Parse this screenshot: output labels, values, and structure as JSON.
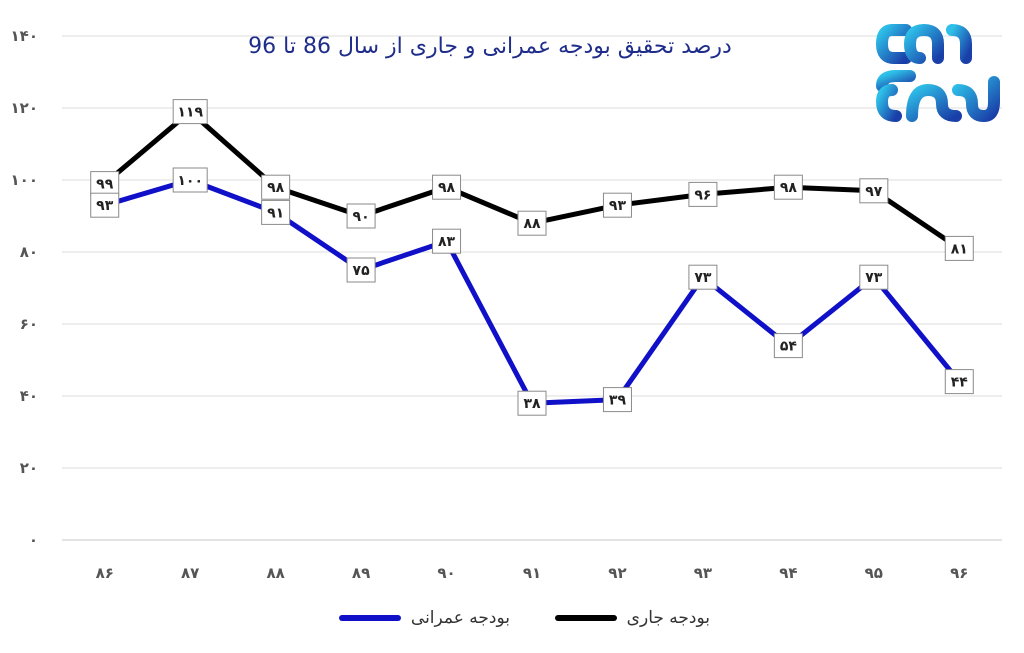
{
  "chart_data": {
    "type": "line",
    "title": "درصد تحقیق بودجه عمرانی و جاری از سال 86 تا 96",
    "categories": [
      "۸۶",
      "۸۷",
      "۸۸",
      "۸۹",
      "۹۰",
      "۹۱",
      "۹۲",
      "۹۳",
      "۹۴",
      "۹۵",
      "۹۶"
    ],
    "ylim": [
      0,
      140
    ],
    "yticks": [
      0,
      20,
      40,
      60,
      80,
      100,
      120,
      140
    ],
    "ytick_labels": [
      "۰",
      "۲۰",
      "۴۰",
      "۶۰",
      "۸۰",
      "۱۰۰",
      "۱۲۰",
      "۱۴۰"
    ],
    "grid": true,
    "legend_position": "bottom",
    "series": [
      {
        "name": "بودجه جاری",
        "color": "#000000",
        "values": [
          99,
          119,
          98,
          90,
          98,
          88,
          93,
          96,
          98,
          97,
          81
        ],
        "labels": [
          "۹۹",
          "۱۱۹",
          "۹۸",
          "۹۰",
          "۹۸",
          "۸۸",
          "۹۳",
          "۹۶",
          "۹۸",
          "۹۷",
          "۸۱"
        ]
      },
      {
        "name": "بودجه عمرانی",
        "color": "#1010c8",
        "values": [
          93,
          100,
          91,
          75,
          83,
          38,
          39,
          73,
          54,
          73,
          44
        ],
        "labels": [
          "۹۳",
          "۱۰۰",
          "۹۱",
          "۷۵",
          "۸۳",
          "۳۸",
          "۳۹",
          "۷۳",
          "۵۴",
          "۷۳",
          "۴۴"
        ]
      }
    ]
  },
  "logo": {
    "name": "logo-mark",
    "colors": [
      "#1a3fa8",
      "#2ec0e8"
    ]
  }
}
